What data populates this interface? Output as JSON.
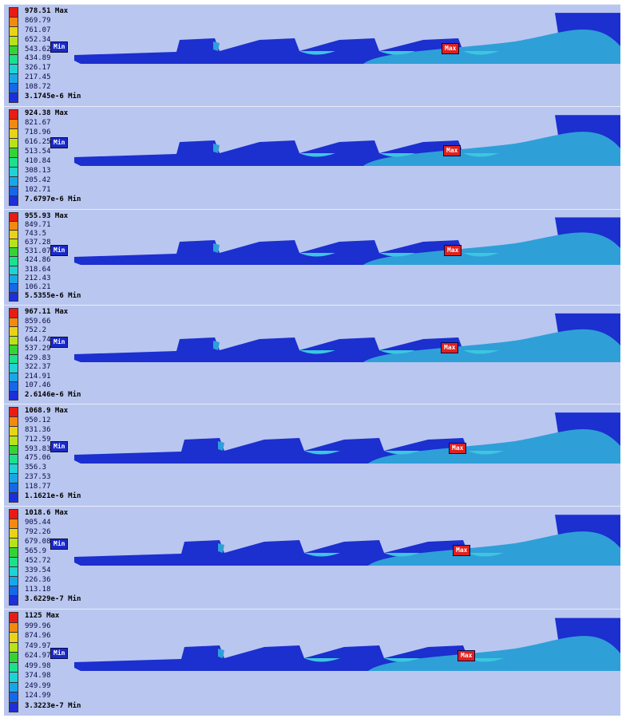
{
  "panels": [
    {
      "legend": [
        "978.51 Max",
        "869.79",
        "761.07",
        "652.34",
        "543.62",
        "434.89",
        "326.17",
        "217.45",
        "108.72",
        "3.1745e-6 Min"
      ],
      "min_label": "Min",
      "max_label": "Max"
    },
    {
      "legend": [
        "924.38 Max",
        "821.67",
        "718.96",
        "616.25",
        "513.54",
        "410.84",
        "308.13",
        "205.42",
        "102.71",
        "7.6797e-6 Min"
      ],
      "min_label": "Min",
      "max_label": "Max"
    },
    {
      "legend": [
        "955.93 Max",
        "849.71",
        "743.5",
        "637.28",
        "531.07",
        "424.86",
        "318.64",
        "212.43",
        "106.21",
        "5.5355e-6 Min"
      ],
      "min_label": "Min",
      "max_label": "Max"
    },
    {
      "legend": [
        "967.11 Max",
        "859.66",
        "752.2",
        "644.74",
        "537.29",
        "429.83",
        "322.37",
        "214.91",
        "107.46",
        "2.6146e-6 Min"
      ],
      "min_label": "Min",
      "max_label": "Max"
    },
    {
      "legend": [
        "1068.9 Max",
        "950.12",
        "831.36",
        "712.59",
        "593.83",
        "475.06",
        "356.3",
        "237.53",
        "118.77",
        "1.1621e-6 Min"
      ],
      "min_label": "Min",
      "max_label": "Max"
    },
    {
      "legend": [
        "1018.6 Max",
        "905.44",
        "792.26",
        "679.08",
        "565.9",
        "452.72",
        "339.54",
        "226.36",
        "113.18",
        "3.6229e-7 Min"
      ],
      "min_label": "Min",
      "max_label": "Max"
    },
    {
      "legend": [
        "1125 Max",
        "999.96",
        "874.96",
        "749.97",
        "624.97",
        "499.98",
        "374.98",
        "249.99",
        "124.99",
        "3.3223e-7 Min"
      ],
      "min_label": "Min",
      "max_label": "Max"
    }
  ],
  "colors": {
    "background": "#b9c6ef",
    "domain_dark_blue": "#1c2fcf",
    "domain_light_blue": "#2f9fd8",
    "domain_cyan": "#3cc6e0",
    "legend_scale": [
      "#e81c14",
      "#f28a10",
      "#e8d318",
      "#b8e21a",
      "#35d335",
      "#1ce08c",
      "#20d2d2",
      "#1aa6e6",
      "#1668e8",
      "#1e2ed8"
    ]
  }
}
